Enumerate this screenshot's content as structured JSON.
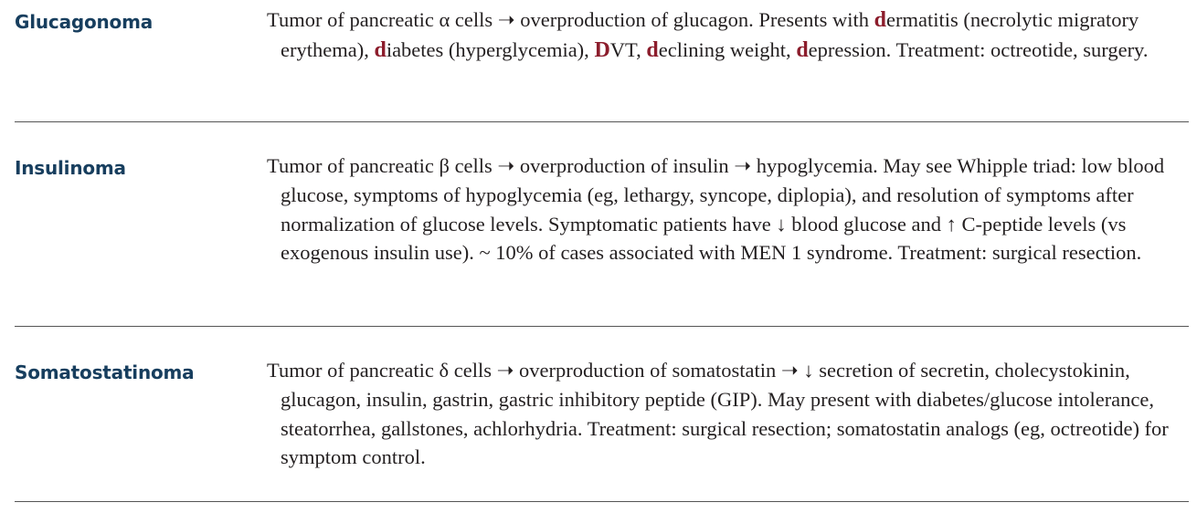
{
  "entries": [
    {
      "term": "Glucagonoma",
      "description_segments": [
        {
          "text": "Tumor of pancreatic α cells ➝ overproduction of glucagon. Presents with ",
          "hl": false
        },
        {
          "text": "d",
          "hl": true
        },
        {
          "text": "ermatitis (necrolytic migratory erythema), ",
          "hl": false
        },
        {
          "text": "d",
          "hl": true
        },
        {
          "text": "iabetes (hyperglycemia), ",
          "hl": false
        },
        {
          "text": "D",
          "hl": true
        },
        {
          "text": "VT, ",
          "hl": false
        },
        {
          "text": "d",
          "hl": true
        },
        {
          "text": "eclining weight, ",
          "hl": false
        },
        {
          "text": "d",
          "hl": true
        },
        {
          "text": "epression. Treatment: octreotide, surgery.",
          "hl": false
        }
      ]
    },
    {
      "term": "Insulinoma",
      "description_segments": [
        {
          "text": "Tumor of pancreatic β cells ➝ overproduction of insulin ➝ hypoglycemia. May see Whipple triad: low blood glucose, symptoms of hypoglycemia (eg, lethargy, syncope, diplopia), and resolution of symptoms after normalization of glucose levels. Symptomatic patients have ↓ blood glucose and ↑ C-peptide levels (vs exogenous insulin use). ~ 10% of cases associated with MEN 1 syndrome. Treatment: surgical resection.",
          "hl": false
        }
      ]
    },
    {
      "term": "Somatostatinoma",
      "description_segments": [
        {
          "text": "Tumor of pancreatic δ cells ➝ overproduction of somatostatin ➝ ↓ secretion of secretin, cholecystokinin, glucagon, insulin, gastrin, gastric inhibitory peptide (GIP). May present with diabetes/glucose intolerance, steatorrhea, gallstones, achlorhydria. Treatment: surgical resection; somatostatin analogs (eg, octreotide) for symptom control.",
          "hl": false
        }
      ]
    }
  ],
  "colors": {
    "term": "#173e5e",
    "body_text": "#231f20",
    "mnemonic_highlight": "#8c1d2c",
    "rule": "#555555"
  }
}
